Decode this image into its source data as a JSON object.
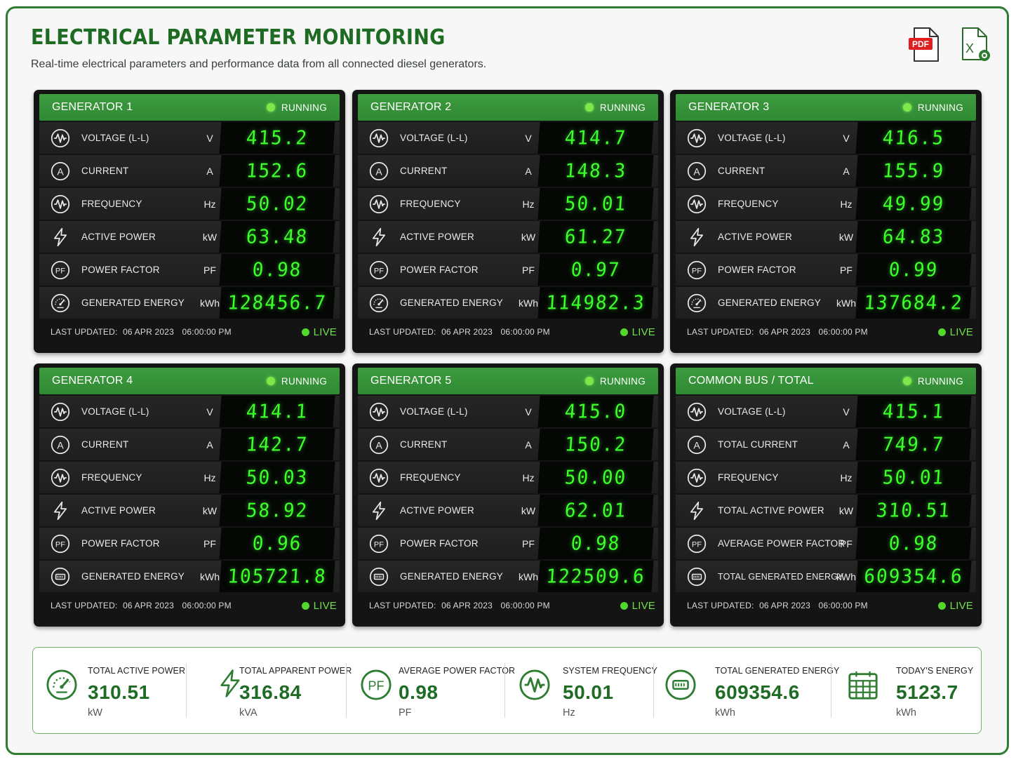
{
  "header": {
    "title": "ELECTRICAL PARAMETER MONITORING",
    "subtitle": "Real-time electrical parameters and performance data from all connected diesel generators.",
    "pdf_label": "PDF",
    "xls_label": "X"
  },
  "panels": [
    {
      "title": "GENERATOR 1",
      "status": "RUNNING",
      "rows": [
        {
          "icon": "voltage-icon",
          "label": "VOLTAGE (L-L)",
          "unit": "V",
          "value": "415.2"
        },
        {
          "icon": "current-icon",
          "label": "CURRENT",
          "unit": "A",
          "value": "152.6"
        },
        {
          "icon": "frequency-icon",
          "label": "FREQUENCY",
          "unit": "Hz",
          "value": "50.02"
        },
        {
          "icon": "lightning-icon",
          "label": "ACTIVE POWER",
          "unit": "kW",
          "value": "63.48"
        },
        {
          "icon": "power-factor-icon",
          "label": "POWER FACTOR",
          "unit": "PF",
          "value": "0.98"
        },
        {
          "icon": "gauge-icon",
          "label": "GENERATED ENERGY",
          "unit": "kWh",
          "value": "128456.7"
        }
      ],
      "last_updated_label": "LAST UPDATED:",
      "date": "06 APR 2023",
      "time": "06:00:00 PM",
      "live": "LIVE"
    },
    {
      "title": "GENERATOR 2",
      "status": "RUNNING",
      "rows": [
        {
          "icon": "voltage-icon",
          "label": "VOLTAGE (L-L)",
          "unit": "V",
          "value": "414.7"
        },
        {
          "icon": "current-icon",
          "label": "CURRENT",
          "unit": "A",
          "value": "148.3"
        },
        {
          "icon": "frequency-icon",
          "label": "FREQUENCY",
          "unit": "Hz",
          "value": "50.01"
        },
        {
          "icon": "lightning-icon",
          "label": "ACTIVE POWER",
          "unit": "kW",
          "value": "61.27"
        },
        {
          "icon": "power-factor-icon",
          "label": "POWER FACTOR",
          "unit": "PF",
          "value": "0.97"
        },
        {
          "icon": "gauge-icon",
          "label": "GENERATED ENERGY",
          "unit": "kWh",
          "value": "114982.3"
        }
      ],
      "last_updated_label": "LAST UPDATED:",
      "date": "06 APR 2023",
      "time": "06:00:00 PM",
      "live": "LIVE"
    },
    {
      "title": "GENERATOR 3",
      "status": "RUNNING",
      "rows": [
        {
          "icon": "voltage-icon",
          "label": "VOLTAGE (L-L)",
          "unit": "V",
          "value": "416.5"
        },
        {
          "icon": "current-icon",
          "label": "CURRENT",
          "unit": "A",
          "value": "155.9"
        },
        {
          "icon": "frequency-icon",
          "label": "FREQUENCY",
          "unit": "Hz",
          "value": "49.99"
        },
        {
          "icon": "lightning-icon",
          "label": "ACTIVE POWER",
          "unit": "kW",
          "value": "64.83"
        },
        {
          "icon": "power-factor-icon",
          "label": "POWER FACTOR",
          "unit": "PF",
          "value": "0.99"
        },
        {
          "icon": "gauge-icon",
          "label": "GENERATED ENERGY",
          "unit": "kWh",
          "value": "137684.2"
        }
      ],
      "last_updated_label": "LAST UPDATED:",
      "date": "06 APR 2023",
      "time": "06:00:00 PM",
      "live": "LIVE"
    },
    {
      "title": "GENERATOR 4",
      "status": "RUNNING",
      "rows": [
        {
          "icon": "voltage-icon",
          "label": "VOLTAGE (L-L)",
          "unit": "V",
          "value": "414.1"
        },
        {
          "icon": "current-icon",
          "label": "CURRENT",
          "unit": "A",
          "value": "142.7"
        },
        {
          "icon": "frequency-icon",
          "label": "FREQUENCY",
          "unit": "Hz",
          "value": "50.03"
        },
        {
          "icon": "lightning-icon",
          "label": "ACTIVE POWER",
          "unit": "kW",
          "value": "58.92"
        },
        {
          "icon": "power-factor-icon",
          "label": "POWER FACTOR",
          "unit": "PF",
          "value": "0.96"
        },
        {
          "icon": "energy-meter-icon",
          "label": "GENERATED ENERGY",
          "unit": "kWh",
          "value": "105721.8"
        }
      ],
      "last_updated_label": "LAST UPDATED:",
      "date": "06 APR 2023",
      "time": "06:00:00 PM",
      "live": "LIVE"
    },
    {
      "title": "GENERATOR 5",
      "status": "RUNNING",
      "rows": [
        {
          "icon": "voltage-icon",
          "label": "VOLTAGE (L-L)",
          "unit": "V",
          "value": "415.0"
        },
        {
          "icon": "current-icon",
          "label": "CURRENT",
          "unit": "A",
          "value": "150.2"
        },
        {
          "icon": "frequency-icon",
          "label": "FREQUENCY",
          "unit": "Hz",
          "value": "50.00"
        },
        {
          "icon": "lightning-icon",
          "label": "ACTIVE POWER",
          "unit": "kW",
          "value": "62.01"
        },
        {
          "icon": "power-factor-icon",
          "label": "POWER FACTOR",
          "unit": "PF",
          "value": "0.98"
        },
        {
          "icon": "energy-meter-icon",
          "label": "GENERATED ENERGY",
          "unit": "kWh",
          "value": "122509.6"
        }
      ],
      "last_updated_label": "LAST UPDATED:",
      "date": "06 APR 2023",
      "time": "06:00:00 PM",
      "live": "LIVE"
    },
    {
      "title": "COMMON BUS / TOTAL",
      "status": "RUNNING",
      "rows": [
        {
          "icon": "voltage-icon",
          "label": "VOLTAGE (L-L)",
          "unit": "V",
          "value": "415.1"
        },
        {
          "icon": "current-icon",
          "label": "TOTAL CURRENT",
          "unit": "A",
          "value": "749.7"
        },
        {
          "icon": "frequency-icon",
          "label": "FREQUENCY",
          "unit": "Hz",
          "value": "50.01"
        },
        {
          "icon": "lightning-icon",
          "label": "TOTAL ACTIVE POWER",
          "unit": "kW",
          "value": "310.51"
        },
        {
          "icon": "power-factor-icon",
          "label": "AVERAGE POWER FACTOR",
          "unit": "PF",
          "value": "0.98"
        },
        {
          "icon": "energy-meter-icon",
          "label": "TOTAL GENERATED ENERGY",
          "unit": "kWh",
          "value": "609354.6"
        }
      ],
      "last_updated_label": "LAST UPDATED:",
      "date": "06 APR 2023",
      "time": "06:00:00 PM",
      "live": "LIVE"
    }
  ],
  "summary": [
    {
      "icon": "gauge-icon",
      "label": "TOTAL ACTIVE POWER",
      "value": "310.51",
      "unit": "kW"
    },
    {
      "icon": "lightning-icon",
      "label": "TOTAL APPARENT POWER",
      "value": "316.84",
      "unit": "kVA"
    },
    {
      "icon": "power-factor-icon",
      "label": "AVERAGE POWER FACTOR",
      "value": "0.98",
      "unit": "PF"
    },
    {
      "icon": "frequency-icon",
      "label": "SYSTEM FREQUENCY",
      "value": "50.01",
      "unit": "Hz"
    },
    {
      "icon": "energy-meter-icon",
      "label": "TOTAL GENERATED ENERGY",
      "value": "609354.6",
      "unit": "kWh"
    },
    {
      "icon": "calendar-icon",
      "label": "TODAY'S ENERGY",
      "value": "5123.7",
      "unit": "kWh"
    }
  ],
  "colors": {
    "brand_green": "#1e6b23",
    "panel_header": "#3a963a",
    "digit_green": "#3cff2b",
    "live_green": "#52d82c"
  }
}
